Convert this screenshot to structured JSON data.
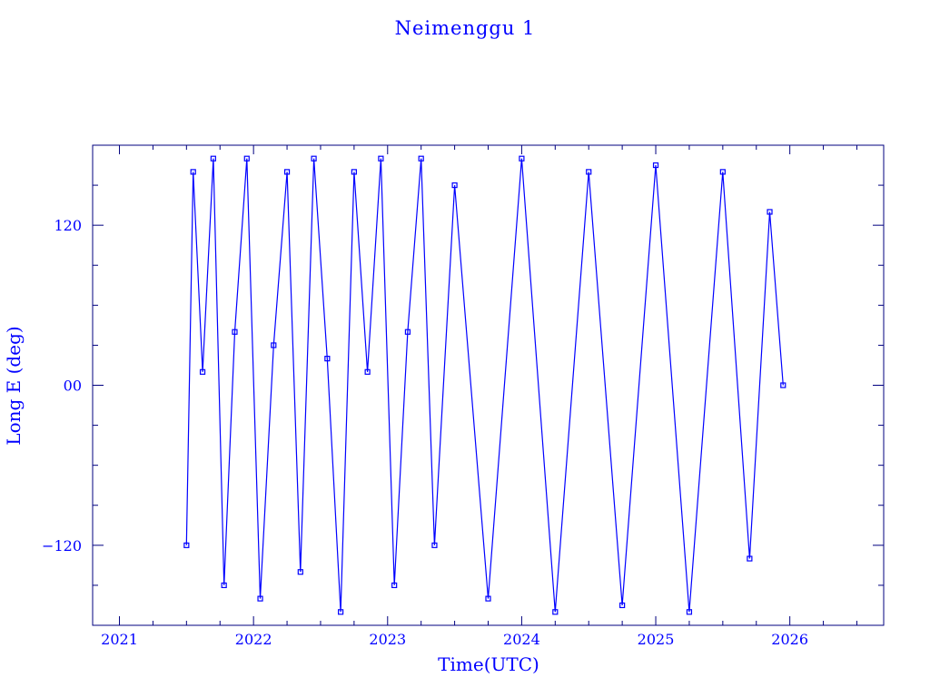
{
  "colors": {
    "ink": "#0000ff",
    "frame": "#00007f",
    "trace": "#0000ff"
  },
  "chart_data": {
    "type": "line",
    "title": "Neimenggu 1",
    "xlabel": "Time(UTC)",
    "ylabel": "Long E (deg)",
    "xlim": [
      2020.8,
      2026.7
    ],
    "ylim": [
      -180,
      180
    ],
    "x_ticks": [
      2021,
      2022,
      2023,
      2024,
      2025,
      2026
    ],
    "x_ticklabels": [
      "2021",
      "2022",
      "2023",
      "2024",
      "2025",
      "2026"
    ],
    "y_ticks": [
      -120,
      0,
      120
    ],
    "y_ticklabels": [
      "−120",
      "00",
      "120"
    ],
    "grid": false,
    "legend": "none",
    "series": [
      {
        "x": [
          2021.5,
          2021.55,
          2021.62,
          2021.7,
          2021.78,
          2021.86,
          2021.95,
          2022.05,
          2022.15,
          2022.25,
          2022.35,
          2022.45,
          2022.55,
          2022.65,
          2022.75,
          2022.85,
          2022.95,
          2023.05,
          2023.15,
          2023.25,
          2023.35,
          2023.5,
          2023.75,
          2024.0,
          2024.25,
          2024.5,
          2024.75,
          2025.0,
          2025.25,
          2025.5,
          2025.7,
          2025.85,
          2025.95
        ],
        "y": [
          -120,
          160,
          10,
          170,
          -150,
          40,
          170,
          -160,
          30,
          160,
          -140,
          170,
          20,
          -170,
          160,
          10,
          170,
          -150,
          40,
          170,
          -120,
          150,
          -160,
          170,
          -170,
          160,
          -165,
          165,
          -170,
          160,
          -130,
          130,
          0
        ]
      }
    ]
  }
}
